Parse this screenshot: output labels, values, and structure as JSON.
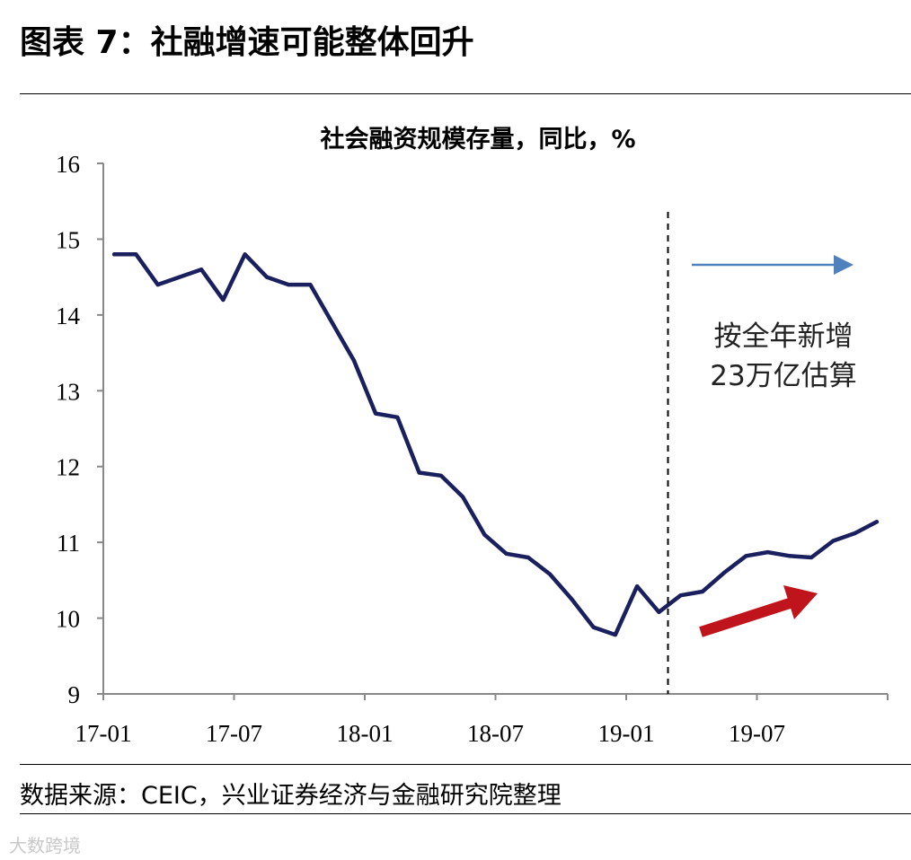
{
  "figure_title": "图表 7：社融增速可能整体回升",
  "source_note": "数据来源：CEIC，兴业证券经济与金融研究院整理",
  "watermark": "大数跨境",
  "chart_data": {
    "type": "line",
    "title": "社会融资规模存量，同比，%",
    "xlabel": "",
    "ylabel": "",
    "ylim": [
      9,
      16
    ],
    "yticks": [
      9,
      10,
      11,
      12,
      13,
      14,
      15,
      16
    ],
    "x_tick_labels": [
      "17-01",
      "17-07",
      "18-01",
      "18-07",
      "19-01",
      "19-07"
    ],
    "x": [
      "17-01",
      "17-02",
      "17-03",
      "17-04",
      "17-05",
      "17-06",
      "17-07",
      "17-08",
      "17-09",
      "17-10",
      "17-11",
      "17-12",
      "18-01",
      "18-02",
      "18-03",
      "18-04",
      "18-05",
      "18-06",
      "18-07",
      "18-08",
      "18-09",
      "18-10",
      "18-11",
      "18-12",
      "19-01",
      "19-02",
      "19-03",
      "19-04",
      "19-05",
      "19-06",
      "19-07",
      "19-08",
      "19-09",
      "19-10",
      "19-11",
      "19-12"
    ],
    "series": [
      {
        "color": "#1a1f5e",
        "values": [
          14.8,
          14.8,
          14.4,
          14.5,
          14.6,
          14.2,
          14.8,
          14.5,
          14.4,
          14.4,
          13.9,
          13.4,
          12.7,
          12.65,
          11.92,
          11.88,
          11.6,
          11.1,
          10.85,
          10.8,
          10.58,
          10.25,
          9.88,
          9.78,
          10.42,
          10.08,
          10.3,
          10.35,
          10.6,
          10.82,
          10.87,
          10.82,
          10.8,
          11.02,
          11.12,
          11.27
        ]
      }
    ],
    "annotations": {
      "divider_after": "19-02",
      "projection_text": [
        "按全年新增",
        "23万亿估算"
      ]
    },
    "colors": {
      "line": "#1a1f5e",
      "projection_arrow": "#4f81bd",
      "trend_arrow": "#c0141c"
    }
  }
}
